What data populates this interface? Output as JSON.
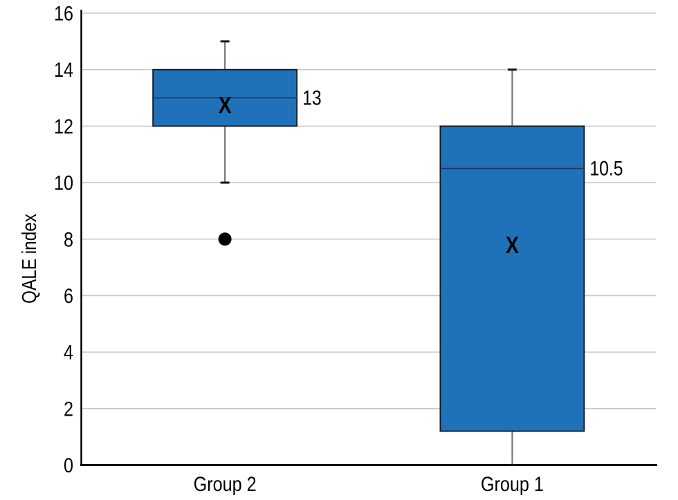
{
  "figure": {
    "background": "#ffffff"
  },
  "chart_data": {
    "type": "boxplot",
    "title": "",
    "xlabel": "",
    "ylabel": "QALE index",
    "ylim": [
      0,
      16
    ],
    "yticks": [
      0,
      2,
      4,
      6,
      8,
      10,
      12,
      14,
      16
    ],
    "grid": true,
    "legend": "none",
    "categories": [
      "Group 2",
      "Group 1"
    ],
    "series": [
      {
        "name": "Group 2",
        "whisker_low": 10,
        "q1": 12,
        "median": 13,
        "q3": 14,
        "whisker_high": 15,
        "mean": 12.75,
        "outliers": [
          8
        ],
        "median_label": "13"
      },
      {
        "name": "Group 1",
        "whisker_low": 0,
        "q1": 1.2,
        "median": 10.5,
        "q3": 12,
        "whisker_high": 14,
        "mean": 7.8,
        "outliers": [],
        "median_label": "10.5"
      }
    ],
    "mean_marker_glyph": "X",
    "colors": {
      "box_fill": "#1f72b8",
      "box_border": "#14181c",
      "median_line": "#1e3a5f",
      "whisker_line": "#6e6e6e",
      "whisker_cap": "#141414",
      "gridline": "#c8c8c8",
      "axis": "#000000",
      "text": "#000000",
      "mean_marker": "#000000",
      "outlier": "#000000"
    }
  }
}
